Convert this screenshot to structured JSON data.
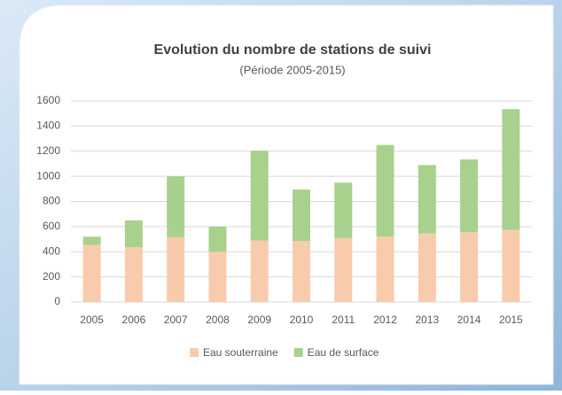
{
  "chart_data": {
    "type": "stacked_bar",
    "title": "Evolution  du nombre de stations de suivi",
    "subtitle": "(Période 2005-2015)",
    "categories": [
      "2005",
      "2006",
      "2007",
      "2008",
      "2009",
      "2010",
      "2011",
      "2012",
      "2013",
      "2014",
      "2015"
    ],
    "series": [
      {
        "name": "Eau souterraine",
        "color": "#f8cbad",
        "values": [
          455,
          435,
          515,
          400,
          490,
          485,
          510,
          520,
          545,
          555,
          575
        ]
      },
      {
        "name": "Eau de surface",
        "color": "#a9d18e",
        "values": [
          65,
          215,
          485,
          200,
          715,
          410,
          440,
          730,
          545,
          580,
          960
        ]
      }
    ],
    "ylim": [
      0,
      1600
    ],
    "yticks": [
      0,
      200,
      400,
      600,
      800,
      1000,
      1200,
      1400,
      1600
    ],
    "grid": true,
    "legend": "bottom"
  }
}
